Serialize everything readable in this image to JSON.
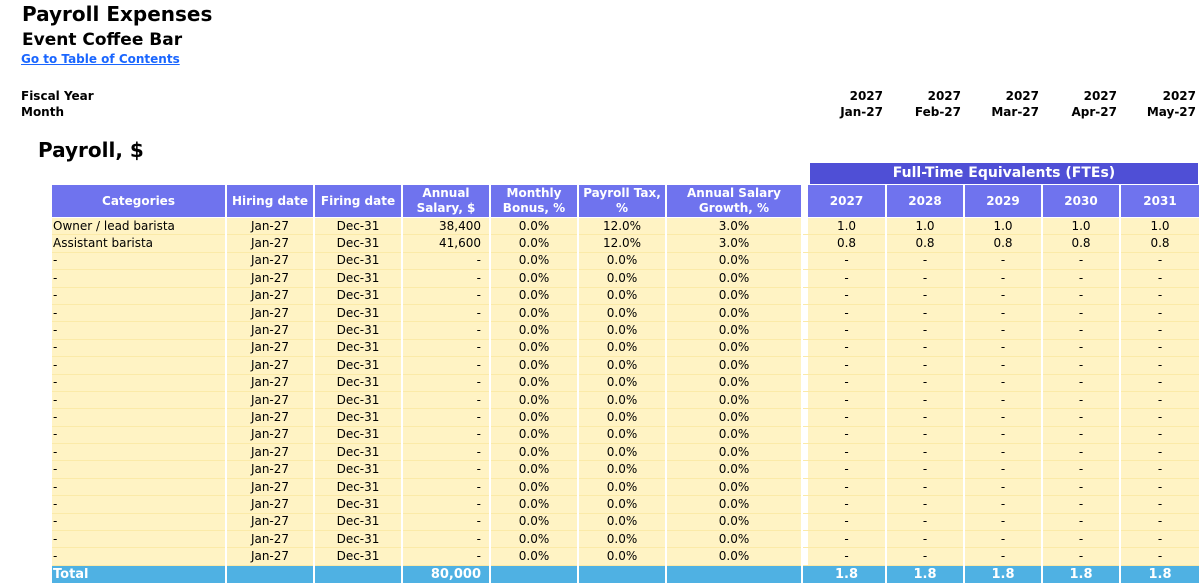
{
  "header": {
    "title": "Payroll Expenses",
    "subtitle": "Event Coffee Bar",
    "toc_link": "Go to Table of Contents",
    "fiscal_year_label": "Fiscal Year",
    "month_label": "Month",
    "calendar": [
      {
        "year": "2027",
        "month": "Jan-27"
      },
      {
        "year": "2027",
        "month": "Feb-27"
      },
      {
        "year": "2027",
        "month": "Mar-27"
      },
      {
        "year": "2027",
        "month": "Apr-27"
      },
      {
        "year": "2027",
        "month": "May-27"
      }
    ]
  },
  "section_title": "Payroll, $",
  "fte_title": "Full-Time Equivalents (FTEs)",
  "columns": {
    "categories": "Categories",
    "hiring": "Hiring date",
    "firing": "Firing date",
    "salary": "Annual Salary, $",
    "bonus": "Monthly Bonus, %",
    "tax": "Payroll Tax, %",
    "growth": "Annual Salary Growth, %",
    "years": [
      "2027",
      "2028",
      "2029",
      "2030",
      "2031"
    ]
  },
  "rows": [
    {
      "cat": "Owner / lead barista",
      "hire": "Jan-27",
      "fire": "Dec-31",
      "salary": "38,400",
      "bonus": "0.0%",
      "tax": "12.0%",
      "growth": "3.0%",
      "fte": [
        "1.0",
        "1.0",
        "1.0",
        "1.0",
        "1.0"
      ]
    },
    {
      "cat": "Assistant barista",
      "hire": "Jan-27",
      "fire": "Dec-31",
      "salary": "41,600",
      "bonus": "0.0%",
      "tax": "12.0%",
      "growth": "3.0%",
      "fte": [
        "0.8",
        "0.8",
        "0.8",
        "0.8",
        "0.8"
      ]
    },
    {
      "cat": "-",
      "hire": "Jan-27",
      "fire": "Dec-31",
      "salary": "-",
      "bonus": "0.0%",
      "tax": "0.0%",
      "growth": "0.0%",
      "fte": [
        "-",
        "-",
        "-",
        "-",
        "-"
      ]
    },
    {
      "cat": "-",
      "hire": "Jan-27",
      "fire": "Dec-31",
      "salary": "-",
      "bonus": "0.0%",
      "tax": "0.0%",
      "growth": "0.0%",
      "fte": [
        "-",
        "-",
        "-",
        "-",
        "-"
      ]
    },
    {
      "cat": "-",
      "hire": "Jan-27",
      "fire": "Dec-31",
      "salary": "-",
      "bonus": "0.0%",
      "tax": "0.0%",
      "growth": "0.0%",
      "fte": [
        "-",
        "-",
        "-",
        "-",
        "-"
      ]
    },
    {
      "cat": "-",
      "hire": "Jan-27",
      "fire": "Dec-31",
      "salary": "-",
      "bonus": "0.0%",
      "tax": "0.0%",
      "growth": "0.0%",
      "fte": [
        "-",
        "-",
        "-",
        "-",
        "-"
      ]
    },
    {
      "cat": "-",
      "hire": "Jan-27",
      "fire": "Dec-31",
      "salary": "-",
      "bonus": "0.0%",
      "tax": "0.0%",
      "growth": "0.0%",
      "fte": [
        "-",
        "-",
        "-",
        "-",
        "-"
      ]
    },
    {
      "cat": "-",
      "hire": "Jan-27",
      "fire": "Dec-31",
      "salary": "-",
      "bonus": "0.0%",
      "tax": "0.0%",
      "growth": "0.0%",
      "fte": [
        "-",
        "-",
        "-",
        "-",
        "-"
      ]
    },
    {
      "cat": "-",
      "hire": "Jan-27",
      "fire": "Dec-31",
      "salary": "-",
      "bonus": "0.0%",
      "tax": "0.0%",
      "growth": "0.0%",
      "fte": [
        "-",
        "-",
        "-",
        "-",
        "-"
      ]
    },
    {
      "cat": "-",
      "hire": "Jan-27",
      "fire": "Dec-31",
      "salary": "-",
      "bonus": "0.0%",
      "tax": "0.0%",
      "growth": "0.0%",
      "fte": [
        "-",
        "-",
        "-",
        "-",
        "-"
      ]
    },
    {
      "cat": "-",
      "hire": "Jan-27",
      "fire": "Dec-31",
      "salary": "-",
      "bonus": "0.0%",
      "tax": "0.0%",
      "growth": "0.0%",
      "fte": [
        "-",
        "-",
        "-",
        "-",
        "-"
      ]
    },
    {
      "cat": "-",
      "hire": "Jan-27",
      "fire": "Dec-31",
      "salary": "-",
      "bonus": "0.0%",
      "tax": "0.0%",
      "growth": "0.0%",
      "fte": [
        "-",
        "-",
        "-",
        "-",
        "-"
      ]
    },
    {
      "cat": "-",
      "hire": "Jan-27",
      "fire": "Dec-31",
      "salary": "-",
      "bonus": "0.0%",
      "tax": "0.0%",
      "growth": "0.0%",
      "fte": [
        "-",
        "-",
        "-",
        "-",
        "-"
      ]
    },
    {
      "cat": "-",
      "hire": "Jan-27",
      "fire": "Dec-31",
      "salary": "-",
      "bonus": "0.0%",
      "tax": "0.0%",
      "growth": "0.0%",
      "fte": [
        "-",
        "-",
        "-",
        "-",
        "-"
      ]
    },
    {
      "cat": "-",
      "hire": "Jan-27",
      "fire": "Dec-31",
      "salary": "-",
      "bonus": "0.0%",
      "tax": "0.0%",
      "growth": "0.0%",
      "fte": [
        "-",
        "-",
        "-",
        "-",
        "-"
      ]
    },
    {
      "cat": "-",
      "hire": "Jan-27",
      "fire": "Dec-31",
      "salary": "-",
      "bonus": "0.0%",
      "tax": "0.0%",
      "growth": "0.0%",
      "fte": [
        "-",
        "-",
        "-",
        "-",
        "-"
      ]
    },
    {
      "cat": "-",
      "hire": "Jan-27",
      "fire": "Dec-31",
      "salary": "-",
      "bonus": "0.0%",
      "tax": "0.0%",
      "growth": "0.0%",
      "fte": [
        "-",
        "-",
        "-",
        "-",
        "-"
      ]
    },
    {
      "cat": "-",
      "hire": "Jan-27",
      "fire": "Dec-31",
      "salary": "-",
      "bonus": "0.0%",
      "tax": "0.0%",
      "growth": "0.0%",
      "fte": [
        "-",
        "-",
        "-",
        "-",
        "-"
      ]
    },
    {
      "cat": "-",
      "hire": "Jan-27",
      "fire": "Dec-31",
      "salary": "-",
      "bonus": "0.0%",
      "tax": "0.0%",
      "growth": "0.0%",
      "fte": [
        "-",
        "-",
        "-",
        "-",
        "-"
      ]
    },
    {
      "cat": "-",
      "hire": "Jan-27",
      "fire": "Dec-31",
      "salary": "-",
      "bonus": "0.0%",
      "tax": "0.0%",
      "growth": "0.0%",
      "fte": [
        "-",
        "-",
        "-",
        "-",
        "-"
      ]
    }
  ],
  "total": {
    "label": "Total",
    "salary": "80,000",
    "fte": [
      "1.8",
      "1.8",
      "1.8",
      "1.8",
      "1.8"
    ]
  },
  "colors": {
    "header_bg": "#6f73ee",
    "fte_banner_bg": "#4f4fd6",
    "cell_bg": "#fff3c4",
    "total_bg": "#4fb1e3",
    "link": "#1a66ff"
  }
}
